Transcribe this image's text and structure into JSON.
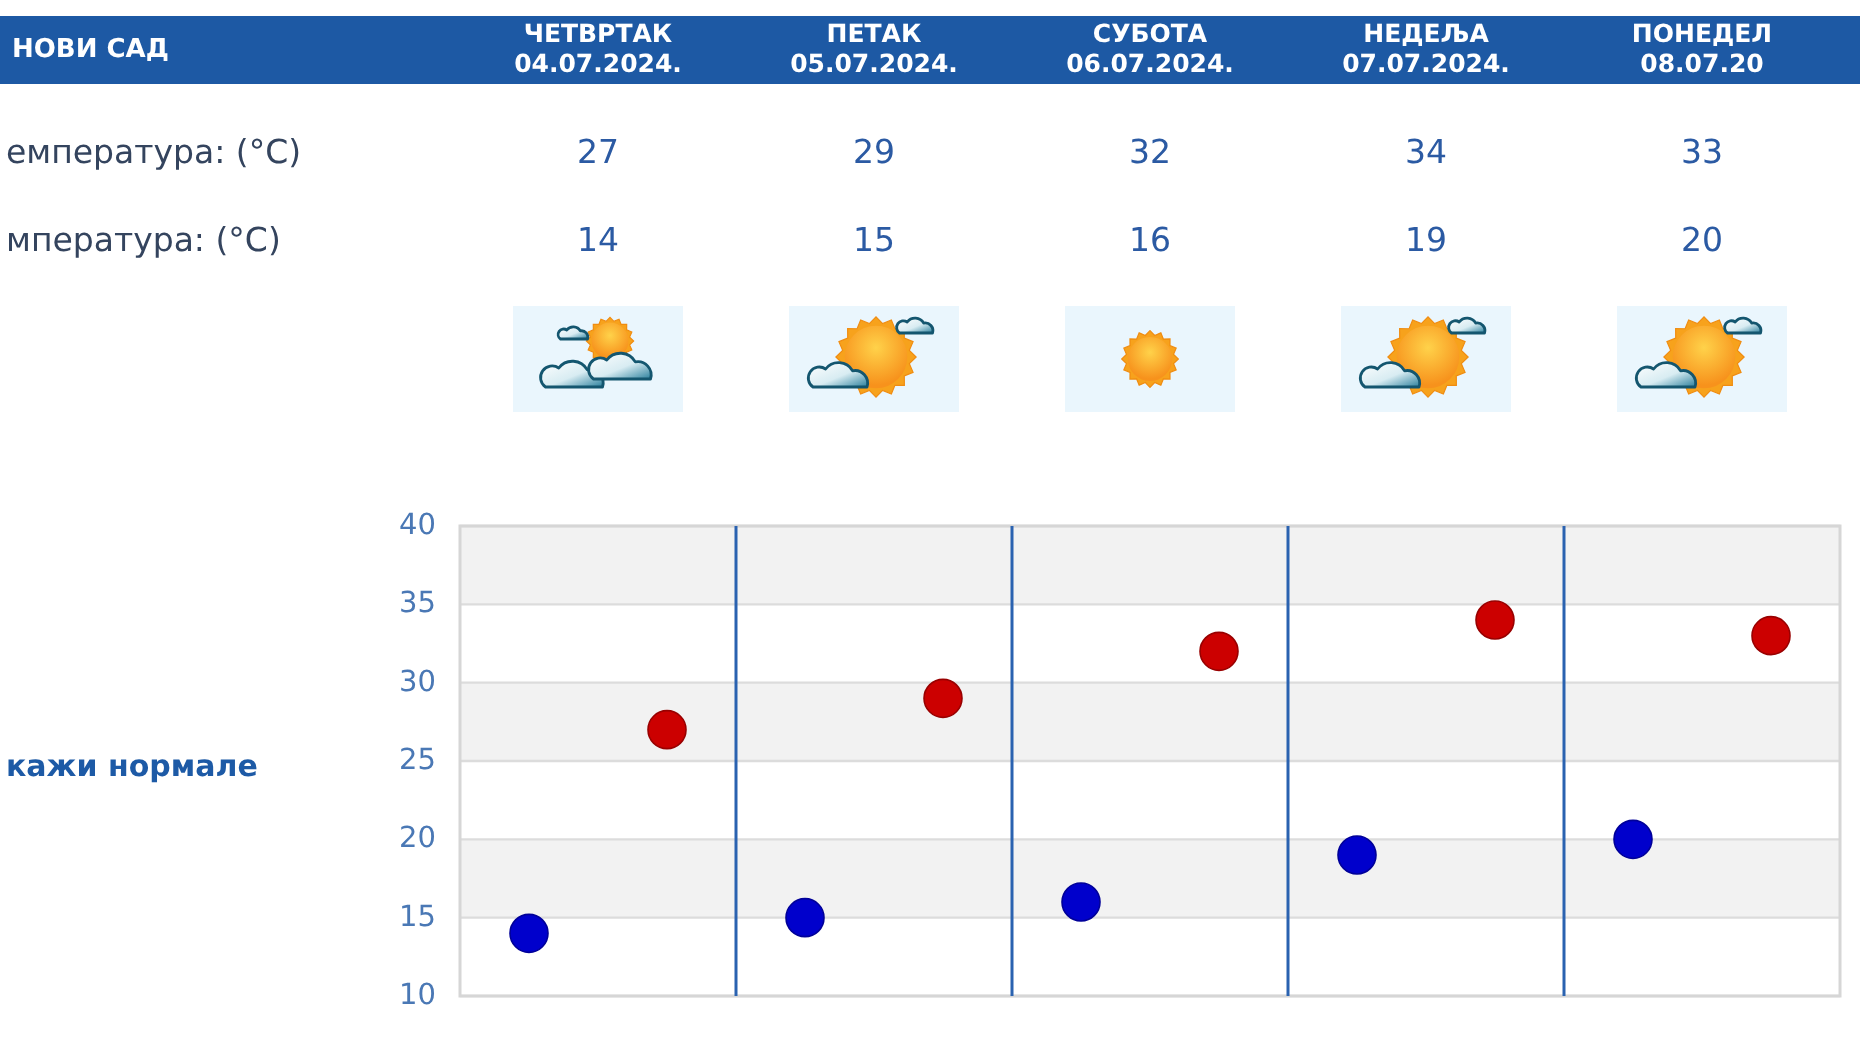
{
  "chart_data": {
    "type": "scatter",
    "title": "НОВИ САД",
    "categories": [
      null,
      null,
      null,
      null,
      null
    ],
    "series": [
      {
        "color": "#cc0000",
        "values": [
          27,
          29,
          32,
          34,
          33
        ]
      },
      {
        "color": "#0000cc",
        "values": [
          14,
          15,
          16,
          19,
          20
        ]
      }
    ],
    "ylim": [
      10,
      40
    ],
    "yticks": [
      10,
      15,
      20,
      25,
      30,
      35,
      40
    ],
    "grid": true,
    "marker": "circle",
    "data_labels": true,
    "annotations": [
      "ЧЕТВРТАК\n04.07.2024.",
      "ПЕТАК\n05.07.2024.",
      "СУБОТА\n06.07.2024.",
      "НЕДЕЉА\n07.07.2024.",
      "ПОНЕДЕЛ\n08.07.20",
      "емпература: (°C)",
      "мпература: (°C)",
      "кажи нормале"
    ]
  }
}
